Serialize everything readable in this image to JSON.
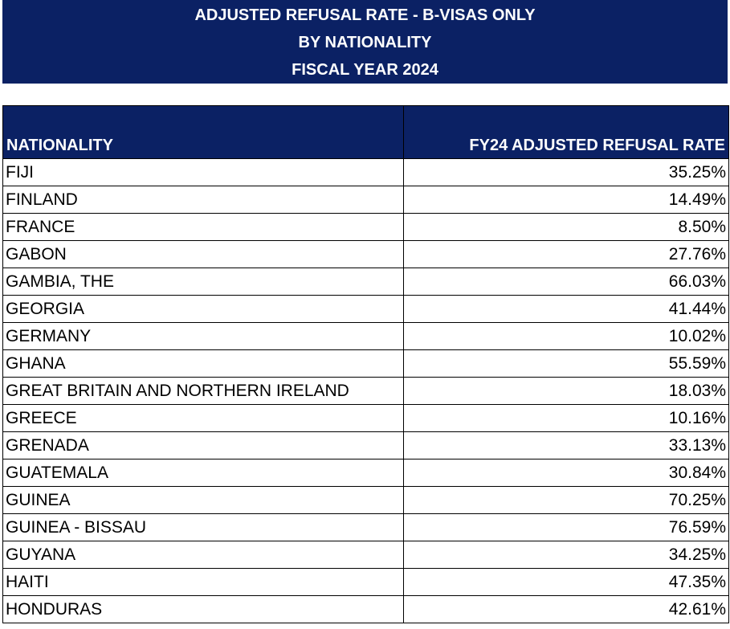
{
  "banner": {
    "line1": "ADJUSTED REFUSAL RATE - B-VISAS ONLY",
    "line2": "BY NATIONALITY",
    "line3": "FISCAL YEAR 2024"
  },
  "table": {
    "headers": {
      "nationality": "NATIONALITY",
      "rate": "FY24 ADJUSTED REFUSAL RATE"
    },
    "rows": [
      {
        "nationality": "FIJI",
        "rate": "35.25%"
      },
      {
        "nationality": "FINLAND",
        "rate": "14.49%"
      },
      {
        "nationality": "FRANCE",
        "rate": "8.50%"
      },
      {
        "nationality": "GABON",
        "rate": "27.76%"
      },
      {
        "nationality": "GAMBIA, THE",
        "rate": "66.03%"
      },
      {
        "nationality": "GEORGIA",
        "rate": "41.44%"
      },
      {
        "nationality": "GERMANY",
        "rate": "10.02%"
      },
      {
        "nationality": "GHANA",
        "rate": "55.59%"
      },
      {
        "nationality": "GREAT BRITAIN AND NORTHERN IRELAND",
        "rate": "18.03%"
      },
      {
        "nationality": "GREECE",
        "rate": "10.16%"
      },
      {
        "nationality": "GRENADA",
        "rate": "33.13%"
      },
      {
        "nationality": "GUATEMALA",
        "rate": "30.84%"
      },
      {
        "nationality": "GUINEA",
        "rate": "70.25%"
      },
      {
        "nationality": "GUINEA - BISSAU",
        "rate": "76.59%"
      },
      {
        "nationality": "GUYANA",
        "rate": "34.25%"
      },
      {
        "nationality": "HAITI",
        "rate": "47.35%"
      },
      {
        "nationality": "HONDURAS",
        "rate": "42.61%"
      }
    ]
  },
  "colors": {
    "header_background": "#0b2164",
    "header_text": "#ffffff"
  }
}
